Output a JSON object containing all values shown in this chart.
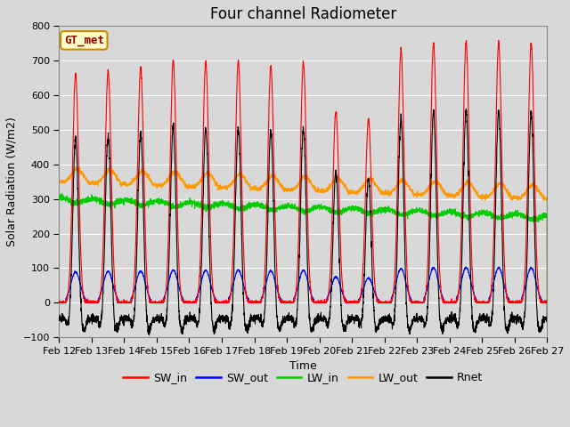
{
  "title": "Four channel Radiometer",
  "xlabel": "Time",
  "ylabel": "Solar Radiation (W/m2)",
  "annotation": "GT_met",
  "ylim": [
    -100,
    800
  ],
  "xlim": [
    0,
    360
  ],
  "x_tick_labels": [
    "Feb 12",
    "Feb 13",
    "Feb 14",
    "Feb 15",
    "Feb 16",
    "Feb 17",
    "Feb 18",
    "Feb 19",
    "Feb 20",
    "Feb 21",
    "Feb 22",
    "Feb 23",
    "Feb 24",
    "Feb 25",
    "Feb 26",
    "Feb 27"
  ],
  "x_tick_positions": [
    0,
    24,
    48,
    72,
    96,
    120,
    144,
    168,
    192,
    216,
    240,
    264,
    288,
    312,
    336,
    360
  ],
  "yticks": [
    -100,
    0,
    100,
    200,
    300,
    400,
    500,
    600,
    700,
    800
  ],
  "colors": {
    "SW_in": "#ff0000",
    "SW_out": "#0000ff",
    "LW_in": "#00cc00",
    "LW_out": "#ff9900",
    "Rnet": "#000000"
  },
  "fig_bg": "#d8d8d8",
  "plot_bg": "#d8d8d8",
  "annotation_bg": "#ffffcc",
  "annotation_border": "#cc8800",
  "annotation_text_color": "#990000",
  "title_fontsize": 12,
  "axis_label_fontsize": 9,
  "tick_fontsize": 8
}
